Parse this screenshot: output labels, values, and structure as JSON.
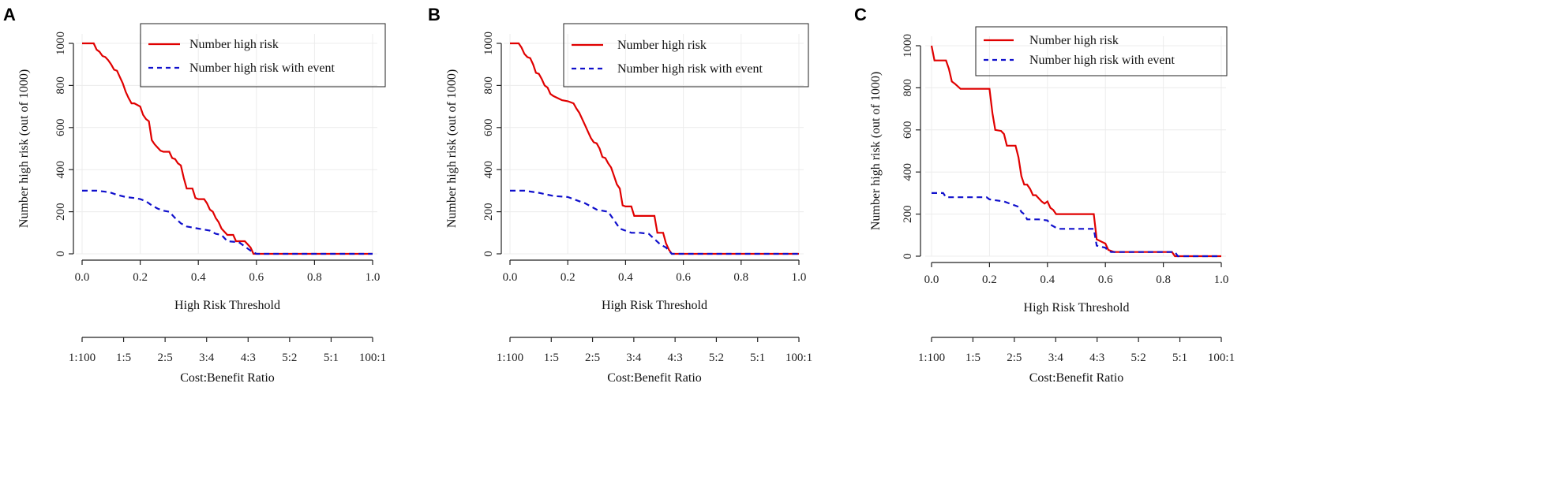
{
  "chart_data": [
    {
      "panel": "A",
      "type": "line",
      "xlabel": "High Risk Threshold",
      "ylabel": "Number high risk (out of 1000)",
      "xlim": [
        0,
        1
      ],
      "ylim": [
        0,
        1000
      ],
      "xticks": [
        "0.0",
        "0.2",
        "0.4",
        "0.6",
        "0.8",
        "1.0"
      ],
      "yticks": [
        "0",
        "200",
        "400",
        "600",
        "800",
        "1000"
      ],
      "secondary_axis": {
        "label": "Cost:Benefit Ratio",
        "ticks": [
          "1:100",
          "1:5",
          "2:5",
          "3:4",
          "4:3",
          "5:2",
          "5:1",
          "100:1"
        ]
      },
      "legend": [
        "Number high risk",
        "Number high risk with event"
      ],
      "series": [
        {
          "name": "Number high risk",
          "color": "#e00000",
          "dash": "solid",
          "x": [
            0,
            0.04,
            0.05,
            0.06,
            0.07,
            0.08,
            0.09,
            0.1,
            0.11,
            0.12,
            0.13,
            0.14,
            0.15,
            0.16,
            0.17,
            0.18,
            0.2,
            0.21,
            0.22,
            0.23,
            0.24,
            0.25,
            0.26,
            0.27,
            0.28,
            0.3,
            0.31,
            0.32,
            0.33,
            0.34,
            0.35,
            0.36,
            0.38,
            0.39,
            0.4,
            0.42,
            0.43,
            0.44,
            0.45,
            0.46,
            0.47,
            0.48,
            0.5,
            0.52,
            0.53,
            0.56,
            0.58,
            0.59,
            0.6,
            1.0
          ],
          "y": [
            1000,
            1000,
            970,
            960,
            940,
            935,
            920,
            900,
            875,
            870,
            840,
            810,
            770,
            740,
            715,
            715,
            700,
            660,
            640,
            630,
            540,
            520,
            505,
            490,
            485,
            485,
            455,
            450,
            430,
            420,
            360,
            310,
            310,
            265,
            260,
            260,
            240,
            210,
            200,
            170,
            150,
            120,
            90,
            90,
            60,
            60,
            30,
            0,
            0,
            0
          ]
        },
        {
          "name": "Number high risk with event",
          "color": "#1010cc",
          "dash": "dashed",
          "x": [
            0,
            0.05,
            0.08,
            0.1,
            0.12,
            0.15,
            0.18,
            0.2,
            0.22,
            0.24,
            0.26,
            0.28,
            0.3,
            0.32,
            0.34,
            0.36,
            0.4,
            0.44,
            0.46,
            0.48,
            0.5,
            0.54,
            0.56,
            0.58,
            0.6,
            1.0
          ],
          "y": [
            300,
            300,
            295,
            290,
            280,
            270,
            265,
            260,
            250,
            230,
            215,
            205,
            200,
            170,
            145,
            130,
            120,
            110,
            95,
            90,
            60,
            55,
            35,
            15,
            0,
            0
          ]
        }
      ]
    },
    {
      "panel": "B",
      "type": "line",
      "xlabel": "High Risk Threshold",
      "ylabel": "Number high risk (out of 1000)",
      "xlim": [
        0,
        1
      ],
      "ylim": [
        0,
        1000
      ],
      "xticks": [
        "0.0",
        "0.2",
        "0.4",
        "0.6",
        "0.8",
        "1.0"
      ],
      "yticks": [
        "0",
        "200",
        "400",
        "600",
        "800",
        "1000"
      ],
      "secondary_axis": {
        "label": "Cost:Benefit Ratio",
        "ticks": [
          "1:100",
          "1:5",
          "2:5",
          "3:4",
          "4:3",
          "5:2",
          "5:1",
          "100:1"
        ]
      },
      "legend": [
        "Number high risk",
        "Number high risk with event"
      ],
      "series": [
        {
          "name": "Number high risk",
          "color": "#e00000",
          "dash": "solid",
          "x": [
            0,
            0.03,
            0.04,
            0.05,
            0.06,
            0.07,
            0.08,
            0.09,
            0.1,
            0.11,
            0.12,
            0.13,
            0.14,
            0.15,
            0.18,
            0.2,
            0.22,
            0.23,
            0.24,
            0.25,
            0.26,
            0.27,
            0.28,
            0.29,
            0.3,
            0.31,
            0.32,
            0.33,
            0.34,
            0.35,
            0.36,
            0.37,
            0.38,
            0.39,
            0.4,
            0.42,
            0.43,
            0.5,
            0.51,
            0.53,
            0.54,
            0.55,
            0.56,
            1.0
          ],
          "y": [
            1000,
            1000,
            980,
            950,
            935,
            930,
            900,
            860,
            855,
            830,
            800,
            790,
            760,
            750,
            730,
            725,
            715,
            690,
            670,
            640,
            610,
            580,
            550,
            530,
            525,
            500,
            460,
            455,
            430,
            410,
            370,
            330,
            310,
            230,
            225,
            225,
            180,
            180,
            100,
            100,
            50,
            20,
            0,
            0
          ]
        },
        {
          "name": "Number high risk with event",
          "color": "#1010cc",
          "dash": "dashed",
          "x": [
            0,
            0.05,
            0.1,
            0.15,
            0.2,
            0.22,
            0.24,
            0.26,
            0.28,
            0.3,
            0.32,
            0.34,
            0.36,
            0.38,
            0.4,
            0.42,
            0.45,
            0.48,
            0.5,
            0.52,
            0.54,
            0.56,
            1.0
          ],
          "y": [
            300,
            300,
            290,
            275,
            270,
            260,
            250,
            240,
            225,
            210,
            205,
            200,
            160,
            120,
            110,
            100,
            100,
            95,
            70,
            45,
            30,
            0,
            0
          ]
        }
      ]
    },
    {
      "panel": "C",
      "type": "line",
      "xlabel": "High Risk Threshold",
      "ylabel": "Number high risk (out of 1000)",
      "xlim": [
        0,
        1
      ],
      "ylim": [
        0,
        1000
      ],
      "xticks": [
        "0.0",
        "0.2",
        "0.4",
        "0.6",
        "0.8",
        "1.0"
      ],
      "yticks": [
        "0",
        "200",
        "400",
        "600",
        "800",
        "1000"
      ],
      "secondary_axis": {
        "label": "Cost:Benefit Ratio",
        "ticks": [
          "1:100",
          "1:5",
          "2:5",
          "3:4",
          "4:3",
          "5:2",
          "5:1",
          "100:1"
        ]
      },
      "legend": [
        "Number high risk",
        "Number high risk with event"
      ],
      "series": [
        {
          "name": "Number high risk",
          "color": "#e00000",
          "dash": "solid",
          "x": [
            0,
            0.01,
            0.05,
            0.06,
            0.07,
            0.08,
            0.1,
            0.2,
            0.21,
            0.22,
            0.24,
            0.25,
            0.26,
            0.29,
            0.3,
            0.31,
            0.32,
            0.33,
            0.34,
            0.35,
            0.36,
            0.38,
            0.39,
            0.4,
            0.41,
            0.42,
            0.43,
            0.44,
            0.56,
            0.57,
            0.6,
            0.61,
            0.63,
            0.83,
            0.84,
            1.0
          ],
          "y": [
            1000,
            930,
            930,
            890,
            830,
            820,
            795,
            795,
            680,
            600,
            595,
            580,
            525,
            525,
            470,
            380,
            340,
            340,
            320,
            290,
            290,
            260,
            250,
            260,
            230,
            220,
            200,
            200,
            200,
            80,
            60,
            30,
            20,
            20,
            0,
            0
          ]
        },
        {
          "name": "Number high risk with event",
          "color": "#1010cc",
          "dash": "dashed",
          "x": [
            0,
            0.04,
            0.05,
            0.06,
            0.08,
            0.19,
            0.2,
            0.25,
            0.3,
            0.31,
            0.32,
            0.33,
            0.36,
            0.37,
            0.4,
            0.41,
            0.43,
            0.44,
            0.56,
            0.57,
            0.6,
            0.61,
            0.62,
            0.84,
            0.85,
            1.0
          ],
          "y": [
            300,
            300,
            280,
            280,
            280,
            280,
            270,
            260,
            235,
            210,
            200,
            175,
            175,
            175,
            170,
            150,
            135,
            130,
            130,
            50,
            40,
            25,
            20,
            20,
            0,
            0
          ]
        }
      ]
    }
  ]
}
